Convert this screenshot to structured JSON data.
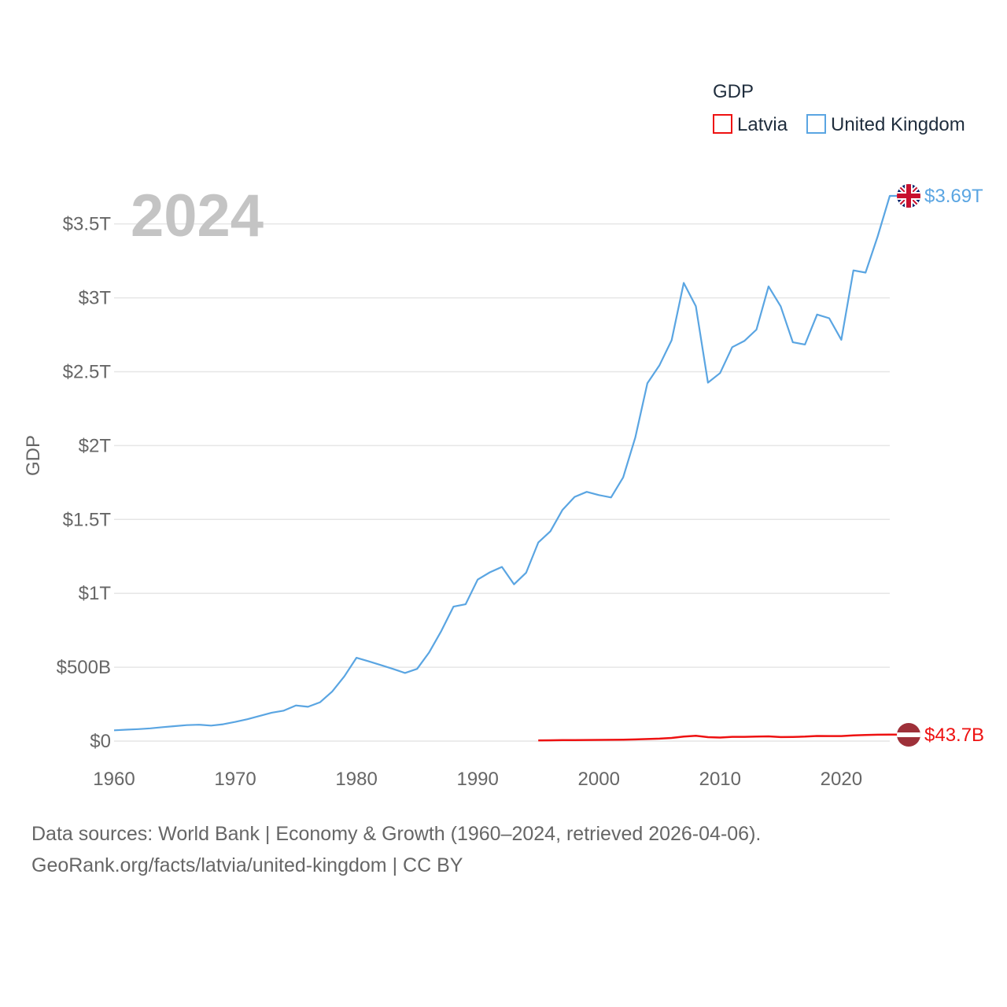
{
  "legend": {
    "title": "GDP"
  },
  "year_label": "2024",
  "footer": {
    "line1": "Data sources: World Bank | Economy & Growth (1960–2024, retrieved 2026-04-06).",
    "line2": "GeoRank.org/facts/latvia/united-kingdom | CC BY"
  },
  "chart_data": {
    "type": "line",
    "title": "",
    "xlabel": "",
    "ylabel": "GDP",
    "xlim": [
      1960,
      2024
    ],
    "ylim": [
      0,
      3.69
    ],
    "y_unit": "trillion USD",
    "x_ticks": [
      1960,
      1970,
      1980,
      1990,
      2000,
      2010,
      2020
    ],
    "y_ticks": [
      {
        "value": 0,
        "label": "$0"
      },
      {
        "value": 0.5,
        "label": "$500B"
      },
      {
        "value": 1,
        "label": "$1T"
      },
      {
        "value": 1.5,
        "label": "$1.5T"
      },
      {
        "value": 2,
        "label": "$2T"
      },
      {
        "value": 2.5,
        "label": "$2.5T"
      },
      {
        "value": 3,
        "label": "$3T"
      },
      {
        "value": 3.5,
        "label": "$3.5T"
      }
    ],
    "grid": true,
    "legend_position": "top-right",
    "series": [
      {
        "name": "Latvia",
        "color": "#ee1111",
        "end_label": "$43.7B",
        "flag": "latvia-flag",
        "x": [
          1995,
          1996,
          1997,
          1998,
          1999,
          2000,
          2001,
          2002,
          2003,
          2004,
          2005,
          2006,
          2007,
          2008,
          2009,
          2010,
          2011,
          2012,
          2013,
          2014,
          2015,
          2016,
          2017,
          2018,
          2019,
          2020,
          2021,
          2022,
          2023,
          2024
        ],
        "values": [
          0.005,
          0.0055,
          0.0062,
          0.0068,
          0.0073,
          0.0079,
          0.0083,
          0.0093,
          0.0114,
          0.0139,
          0.0165,
          0.0213,
          0.0305,
          0.0358,
          0.0264,
          0.0239,
          0.0286,
          0.0286,
          0.0306,
          0.0318,
          0.0271,
          0.028,
          0.0306,
          0.0344,
          0.0343,
          0.0339,
          0.039,
          0.0411,
          0.0432,
          0.0437
        ]
      },
      {
        "name": "United Kingdom",
        "color": "#5aa5e2",
        "end_label": "$3.69T",
        "flag": "uk-flag",
        "x": [
          1960,
          1961,
          1962,
          1963,
          1964,
          1965,
          1966,
          1967,
          1968,
          1969,
          1970,
          1971,
          1972,
          1973,
          1974,
          1975,
          1976,
          1977,
          1978,
          1979,
          1980,
          1981,
          1982,
          1983,
          1984,
          1985,
          1986,
          1987,
          1988,
          1989,
          1990,
          1991,
          1992,
          1993,
          1994,
          1995,
          1996,
          1997,
          1998,
          1999,
          2000,
          2001,
          2002,
          2003,
          2004,
          2005,
          2006,
          2007,
          2008,
          2009,
          2010,
          2011,
          2012,
          2013,
          2014,
          2015,
          2016,
          2017,
          2018,
          2019,
          2020,
          2021,
          2022,
          2023,
          2024
        ],
        "values": [
          0.073,
          0.077,
          0.081,
          0.086,
          0.094,
          0.101,
          0.108,
          0.111,
          0.105,
          0.114,
          0.13,
          0.148,
          0.17,
          0.192,
          0.206,
          0.241,
          0.232,
          0.263,
          0.336,
          0.438,
          0.564,
          0.54,
          0.515,
          0.489,
          0.461,
          0.489,
          0.601,
          0.746,
          0.91,
          0.926,
          1.093,
          1.142,
          1.179,
          1.061,
          1.14,
          1.344,
          1.42,
          1.565,
          1.653,
          1.687,
          1.665,
          1.649,
          1.785,
          2.054,
          2.422,
          2.544,
          2.713,
          3.101,
          2.943,
          2.426,
          2.491,
          2.666,
          2.708,
          2.785,
          3.077,
          2.943,
          2.699,
          2.684,
          2.887,
          2.862,
          2.716,
          3.186,
          3.171,
          3.416,
          3.69
        ]
      }
    ]
  }
}
